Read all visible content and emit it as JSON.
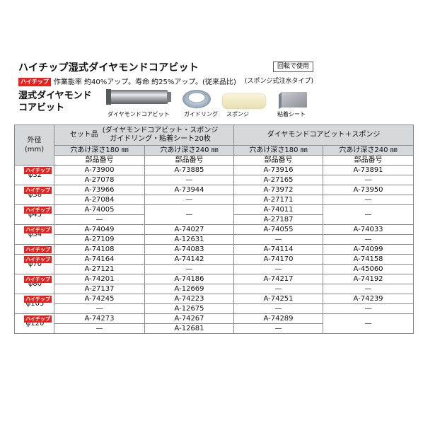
{
  "header": {
    "title": "ハイチップ湿式ダイヤモンドコアビット",
    "badge": "ハイチップ",
    "subline": "作業能率 約40%アップ。寿命 約25%アップ。(従来品比)",
    "usage_box": "回転で使用",
    "usage_note": "(スポンジ式注水タイプ)",
    "section_title_1": "湿式ダイヤモンド",
    "section_title_2": "コアビット"
  },
  "products": [
    {
      "name": "diamond-core-bit",
      "caption": "ダイヤモンドコアビット"
    },
    {
      "name": "guide-ring",
      "caption": "ガイドリング"
    },
    {
      "name": "sponge",
      "caption": "スポンジ"
    },
    {
      "name": "adhesive-sheet",
      "caption": "粘着シート"
    }
  ],
  "table": {
    "outer_label_1": "外径",
    "outer_label_2": "(mm)",
    "set_prefix": "セット品",
    "set_line1": "(ダイヤモンドコアビット・スポンジ",
    "set_line2": "ガイドリング・粘着シート20枚",
    "bit_sponge": "ダイヤモンドコアビット＋スポンジ",
    "depth_180": "穴あけ深さ180 ㎜",
    "depth_240": "穴あけ深さ240 ㎜",
    "part_no": "部品番号",
    "rows": [
      {
        "diam": "φ32",
        "badge": "ハイチップ",
        "a": [
          "A-73900",
          "A-27078"
        ],
        "b": [
          "A-73885",
          "—"
        ],
        "c": [
          "A-73916",
          "A-27165"
        ],
        "d": [
          "A-73891",
          "—"
        ]
      },
      {
        "diam": "φ38",
        "badge": "ハイチップ",
        "a": [
          "A-73966",
          "A-27084"
        ],
        "b": [
          "A-73944",
          "—"
        ],
        "c": [
          "A-73972",
          "A-27171"
        ],
        "d": [
          "A-73950",
          "—"
        ]
      },
      {
        "diam": "φ45",
        "badge": "ハイチップ",
        "a": [
          "A-74005",
          "—"
        ],
        "b": [
          "—",
          "—"
        ],
        "c": [
          "A-74011",
          "A-27187"
        ],
        "d": [
          "—",
          "—"
        ]
      },
      {
        "diam": "φ54",
        "badge": "ハイチップ",
        "a": [
          "A-74049",
          "A-27109"
        ],
        "b": [
          "A-74027",
          "A-12631"
        ],
        "c": [
          "A-74055",
          "—"
        ],
        "d": [
          "A-74033",
          "—"
        ]
      },
      {
        "diam": "φ65",
        "badge": "ハイチップ",
        "a": [
          "A-74108",
          ""
        ],
        "b": [
          "A-74083",
          ""
        ],
        "c": [
          "A-74114",
          ""
        ],
        "d": [
          "A-74099",
          ""
        ]
      },
      {
        "diam": "φ70",
        "badge": "ハイチップ",
        "a": [
          "A-74164",
          "A-27121"
        ],
        "b": [
          "A-74142",
          "—"
        ],
        "c": [
          "A-74170",
          "—"
        ],
        "d": [
          "A-74158",
          "A-45060"
        ]
      },
      {
        "diam": "φ80",
        "badge": "ハイチップ",
        "a": [
          "A-74201",
          "A-27137"
        ],
        "b": [
          "A-74186",
          "A-12669"
        ],
        "c": [
          "A-74217",
          "—"
        ],
        "d": [
          "A-74192",
          "—"
        ]
      },
      {
        "diam": "φ105",
        "badge": "ハイチップ",
        "a": [
          "A-74245",
          "—"
        ],
        "b": [
          "A-74223",
          "A-12675"
        ],
        "c": [
          "A-74251",
          "—"
        ],
        "d": [
          "A-74239",
          "—"
        ]
      },
      {
        "diam": "φ120",
        "badge": "ハイチップ",
        "a": [
          "A-74273",
          "—"
        ],
        "b": [
          "A-74267",
          "A-12681"
        ],
        "c": [
          "A-74289",
          "—"
        ],
        "d": [
          "—",
          "—"
        ]
      }
    ]
  },
  "colors": {
    "badge": "#e8231f",
    "header_bg": "#d6d9dc",
    "grid": "#8a8a8a"
  }
}
